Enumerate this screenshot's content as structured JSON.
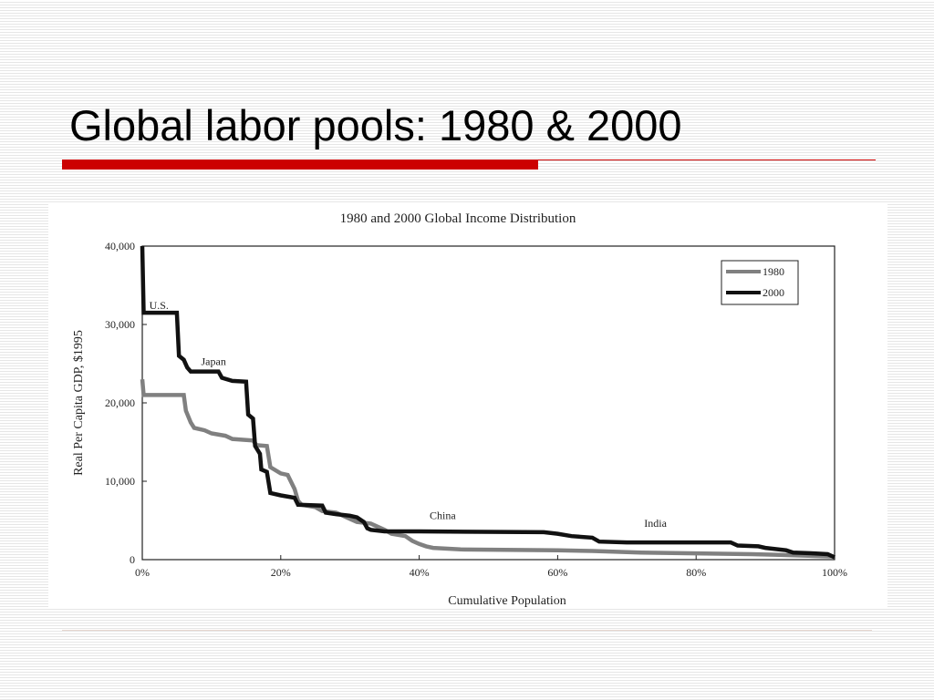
{
  "slide": {
    "title": "Global labor pools: 1980 & 2000",
    "accent_color": "#cc0000"
  },
  "chart_data": {
    "type": "line",
    "title": "1980 and 2000 Global Income Distribution",
    "xlabel": "Cumulative Population",
    "ylabel": "Real Per Capita GDP, $1995",
    "xlim": [
      0,
      100
    ],
    "ylim": [
      0,
      40000
    ],
    "x_ticks": [
      0,
      20,
      40,
      60,
      80,
      100
    ],
    "x_tick_labels": [
      "0%",
      "20%",
      "40%",
      "60%",
      "80%",
      "100%"
    ],
    "y_ticks": [
      0,
      10000,
      20000,
      30000,
      40000
    ],
    "y_tick_labels": [
      "0",
      "10,000",
      "20,000",
      "30,000",
      "40,000"
    ],
    "grid": false,
    "legend_position": "top-right",
    "series": [
      {
        "name": "1980",
        "color": "#808080",
        "points": [
          [
            0,
            23000
          ],
          [
            0.2,
            21000
          ],
          [
            6,
            21000
          ],
          [
            6.3,
            19000
          ],
          [
            7,
            17500
          ],
          [
            7.5,
            16800
          ],
          [
            9,
            16500
          ],
          [
            10,
            16100
          ],
          [
            12,
            15800
          ],
          [
            13,
            15400
          ],
          [
            16,
            15200
          ],
          [
            16.5,
            14600
          ],
          [
            18,
            14500
          ],
          [
            18.5,
            11800
          ],
          [
            20,
            11000
          ],
          [
            21,
            10800
          ],
          [
            22,
            9000
          ],
          [
            22.5,
            7500
          ],
          [
            23,
            7000
          ],
          [
            25,
            6700
          ],
          [
            26,
            6200
          ],
          [
            28,
            6000
          ],
          [
            30,
            5200
          ],
          [
            31,
            4800
          ],
          [
            33,
            4600
          ],
          [
            35,
            3800
          ],
          [
            36,
            3300
          ],
          [
            38,
            3000
          ],
          [
            39,
            2400
          ],
          [
            40,
            2000
          ],
          [
            41,
            1700
          ],
          [
            42,
            1500
          ],
          [
            46,
            1300
          ],
          [
            60,
            1200
          ],
          [
            65,
            1100
          ],
          [
            72,
            900
          ],
          [
            80,
            800
          ],
          [
            88,
            700
          ],
          [
            92,
            600
          ],
          [
            100,
            400
          ]
        ]
      },
      {
        "name": "2000",
        "color": "#111111",
        "points": [
          [
            0,
            40000
          ],
          [
            0.2,
            31500
          ],
          [
            5,
            31500
          ],
          [
            5.3,
            26000
          ],
          [
            6,
            25500
          ],
          [
            6.5,
            24500
          ],
          [
            7,
            24000
          ],
          [
            11,
            24000
          ],
          [
            11.5,
            23200
          ],
          [
            13,
            22800
          ],
          [
            15,
            22700
          ],
          [
            15.3,
            18500
          ],
          [
            16,
            18000
          ],
          [
            16.3,
            14500
          ],
          [
            17,
            13500
          ],
          [
            17.2,
            11500
          ],
          [
            18,
            11200
          ],
          [
            18.5,
            8500
          ],
          [
            20,
            8200
          ],
          [
            22,
            7900
          ],
          [
            22.5,
            7000
          ],
          [
            26,
            6900
          ],
          [
            26.5,
            6000
          ],
          [
            28,
            5800
          ],
          [
            30,
            5600
          ],
          [
            31,
            5400
          ],
          [
            32,
            4800
          ],
          [
            32.5,
            4000
          ],
          [
            33,
            3800
          ],
          [
            35,
            3600
          ],
          [
            40,
            3600
          ],
          [
            58,
            3500
          ],
          [
            60,
            3300
          ],
          [
            62,
            3000
          ],
          [
            65,
            2800
          ],
          [
            66,
            2300
          ],
          [
            70,
            2200
          ],
          [
            85,
            2200
          ],
          [
            86,
            1800
          ],
          [
            89,
            1700
          ],
          [
            90,
            1500
          ],
          [
            93,
            1200
          ],
          [
            94,
            900
          ],
          [
            97,
            800
          ],
          [
            99,
            700
          ],
          [
            100,
            300
          ]
        ]
      }
    ],
    "annotations": [
      {
        "text": "U.S.",
        "x": 1,
        "y": 32000
      },
      {
        "text": "Japan",
        "x": 8.5,
        "y": 24800
      },
      {
        "text": "China",
        "x": 41.5,
        "y": 5200
      },
      {
        "text": "India",
        "x": 72.5,
        "y": 4200
      }
    ]
  }
}
